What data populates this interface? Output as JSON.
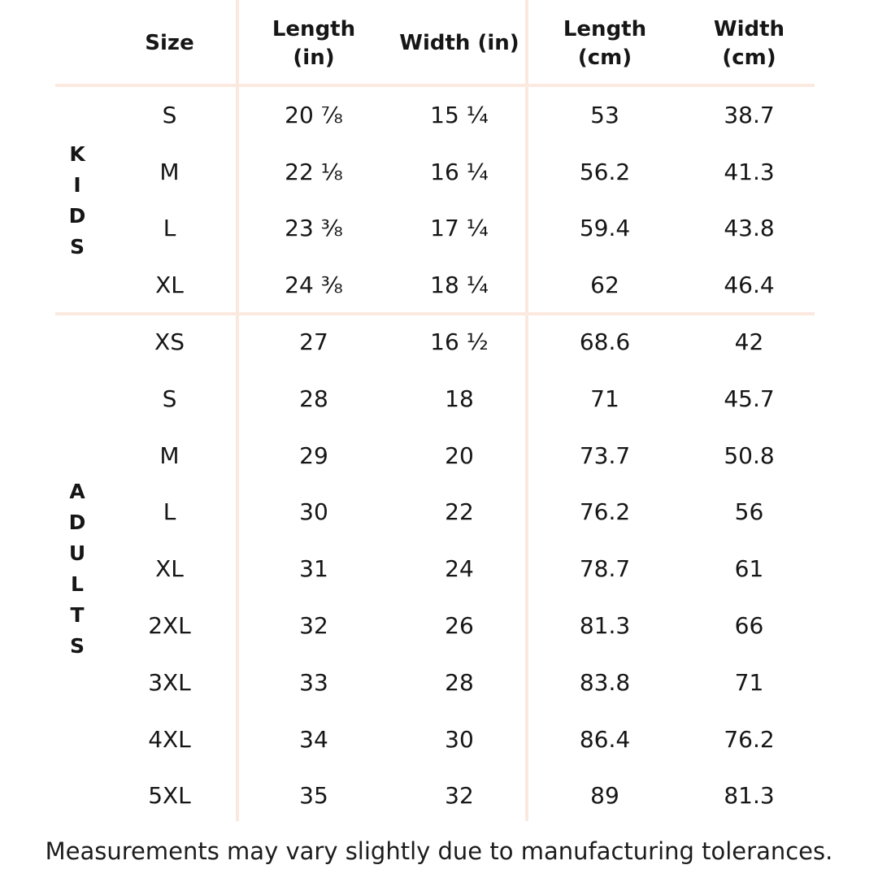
{
  "colors": {
    "divider_line": "#fbe9e0",
    "text": "#161616",
    "background": "#ffffff"
  },
  "chart_data": {
    "type": "table",
    "headers": {
      "size": [
        "Size"
      ],
      "length_in": [
        "Length",
        "(in)"
      ],
      "width_in": [
        "Width (in)"
      ],
      "length_cm": [
        "Length",
        "(cm)"
      ],
      "width_cm": [
        "Width",
        "(cm)"
      ]
    },
    "groups": [
      {
        "label": "KIDS",
        "letters": [
          "K",
          "I",
          "D",
          "S"
        ],
        "rows": [
          {
            "size": "S",
            "length_in": "20 ⅞",
            "width_in": "15 ¼",
            "length_cm": "53",
            "width_cm": "38.7"
          },
          {
            "size": "M",
            "length_in": "22 ⅛",
            "width_in": "16 ¼",
            "length_cm": "56.2",
            "width_cm": "41.3"
          },
          {
            "size": "L",
            "length_in": "23 ⅜",
            "width_in": "17 ¼",
            "length_cm": "59.4",
            "width_cm": "43.8"
          },
          {
            "size": "XL",
            "length_in": "24 ⅜",
            "width_in": "18 ¼",
            "length_cm": "62",
            "width_cm": "46.4"
          }
        ]
      },
      {
        "label": "ADULTS",
        "letters": [
          "A",
          "D",
          "U",
          "L",
          "T",
          "S"
        ],
        "rows": [
          {
            "size": "XS",
            "length_in": "27",
            "width_in": "16 ½",
            "length_cm": "68.6",
            "width_cm": "42"
          },
          {
            "size": "S",
            "length_in": "28",
            "width_in": "18",
            "length_cm": "71",
            "width_cm": "45.7"
          },
          {
            "size": "M",
            "length_in": "29",
            "width_in": "20",
            "length_cm": "73.7",
            "width_cm": "50.8"
          },
          {
            "size": "L",
            "length_in": "30",
            "width_in": "22",
            "length_cm": "76.2",
            "width_cm": "56"
          },
          {
            "size": "XL",
            "length_in": "31",
            "width_in": "24",
            "length_cm": "78.7",
            "width_cm": "61"
          },
          {
            "size": "2XL",
            "length_in": "32",
            "width_in": "26",
            "length_cm": "81.3",
            "width_cm": "66"
          },
          {
            "size": "3XL",
            "length_in": "33",
            "width_in": "28",
            "length_cm": "83.8",
            "width_cm": "71"
          },
          {
            "size": "4XL",
            "length_in": "34",
            "width_in": "30",
            "length_cm": "86.4",
            "width_cm": "76.2"
          },
          {
            "size": "5XL",
            "length_in": "35",
            "width_in": "32",
            "length_cm": "89",
            "width_cm": "81.3"
          }
        ]
      }
    ],
    "footnote": "Measurements may vary slightly due to manufacturing tolerances."
  }
}
